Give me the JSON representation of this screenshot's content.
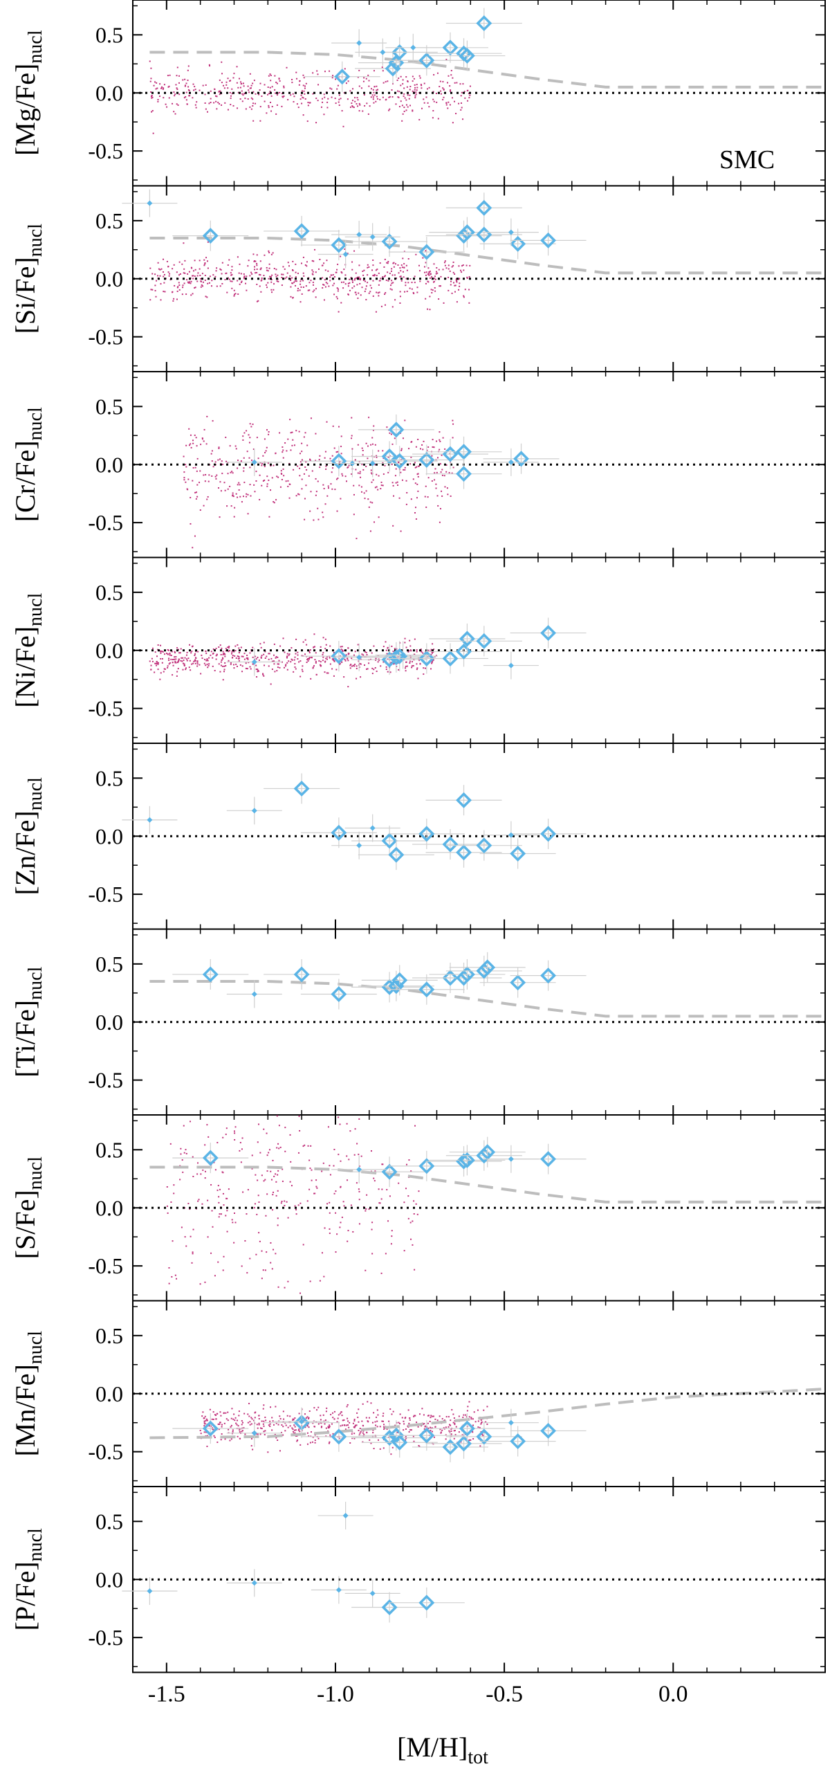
{
  "figure": {
    "xlabel_main": "[M/H]",
    "xlabel_sub": "tot",
    "x_ticks": [
      "-1.5",
      "-1.0",
      "-0.5",
      "0.0"
    ],
    "y_ticks": [
      "0.5",
      "0.0",
      "-0.5"
    ],
    "annotation": "SMC",
    "colors": {
      "model": "#bdbdbd",
      "cluster": "#5ab4e6",
      "field_stars": "#c0307a",
      "errorbar": "#cfcfcf",
      "reference_line": "#000000"
    }
  },
  "chart_data": [
    {
      "type": "scatter",
      "ylabel_main": "[Mg/Fe]",
      "ylabel_sub": "nucl",
      "xlim": [
        -1.6,
        0.45
      ],
      "ylim": [
        -0.8,
        0.8
      ],
      "reference_line_y": 0.0,
      "field_stars": {
        "x_range": [
          -1.55,
          -0.6
        ],
        "y_center": 0.0,
        "y_spread": 0.1,
        "count": 500
      },
      "model_track": {
        "x": [
          -1.55,
          -1.2,
          -1.0,
          -0.8,
          -0.6,
          -0.4,
          -0.2,
          0.0,
          0.45
        ],
        "y": [
          0.35,
          0.35,
          0.33,
          0.28,
          0.2,
          0.12,
          0.05,
          0.05,
          0.05
        ]
      },
      "diamonds": [
        {
          "x": -0.98,
          "y": 0.14
        },
        {
          "x": -0.83,
          "y": 0.21
        },
        {
          "x": -0.82,
          "y": 0.26
        },
        {
          "x": -0.81,
          "y": 0.35
        },
        {
          "x": -0.73,
          "y": 0.28
        },
        {
          "x": -0.66,
          "y": 0.39
        },
        {
          "x": -0.62,
          "y": 0.34
        },
        {
          "x": -0.61,
          "y": 0.32
        },
        {
          "x": -0.56,
          "y": 0.6
        }
      ],
      "small_points": [
        {
          "x": -0.93,
          "y": 0.43
        },
        {
          "x": -0.86,
          "y": 0.35
        },
        {
          "x": -0.77,
          "y": 0.39
        }
      ]
    },
    {
      "type": "scatter",
      "ylabel_main": "[Si/Fe]",
      "ylabel_sub": "nucl",
      "xlim": [
        -1.6,
        0.45
      ],
      "ylim": [
        -0.8,
        0.8
      ],
      "reference_line_y": 0.0,
      "field_stars": {
        "x_range": [
          -1.55,
          -0.6
        ],
        "y_center": 0.0,
        "y_spread": 0.1,
        "count": 600
      },
      "model_track": {
        "x": [
          -1.55,
          -1.2,
          -1.0,
          -0.8,
          -0.6,
          -0.4,
          -0.2,
          0.0,
          0.45
        ],
        "y": [
          0.35,
          0.35,
          0.33,
          0.28,
          0.2,
          0.12,
          0.05,
          0.05,
          0.05
        ]
      },
      "diamonds": [
        {
          "x": -1.37,
          "y": 0.37
        },
        {
          "x": -1.1,
          "y": 0.41
        },
        {
          "x": -0.99,
          "y": 0.29
        },
        {
          "x": -0.84,
          "y": 0.32
        },
        {
          "x": -0.73,
          "y": 0.23
        },
        {
          "x": -0.62,
          "y": 0.37
        },
        {
          "x": -0.61,
          "y": 0.4
        },
        {
          "x": -0.56,
          "y": 0.38
        },
        {
          "x": -0.56,
          "y": 0.61
        },
        {
          "x": -0.46,
          "y": 0.3
        },
        {
          "x": -0.37,
          "y": 0.33
        }
      ],
      "small_points": [
        {
          "x": -1.55,
          "y": 0.65
        },
        {
          "x": -0.93,
          "y": 0.38
        },
        {
          "x": -0.89,
          "y": 0.36
        },
        {
          "x": -0.97,
          "y": 0.21
        },
        {
          "x": -0.48,
          "y": 0.4
        }
      ]
    },
    {
      "type": "scatter",
      "ylabel_main": "[Cr/Fe]",
      "ylabel_sub": "nucl",
      "xlim": [
        -1.6,
        0.45
      ],
      "ylim": [
        -0.8,
        0.8
      ],
      "reference_line_y": 0.0,
      "field_stars": {
        "x_range": [
          -1.45,
          -0.65
        ],
        "y_center": -0.05,
        "y_spread": 0.2,
        "count": 500
      },
      "model_track": null,
      "diamonds": [
        {
          "x": -0.99,
          "y": 0.03
        },
        {
          "x": -0.84,
          "y": 0.07
        },
        {
          "x": -0.82,
          "y": 0.3
        },
        {
          "x": -0.81,
          "y": 0.03
        },
        {
          "x": -0.73,
          "y": 0.04
        },
        {
          "x": -0.66,
          "y": 0.09
        },
        {
          "x": -0.62,
          "y": 0.11
        },
        {
          "x": -0.62,
          "y": -0.08
        },
        {
          "x": -0.45,
          "y": 0.05
        }
      ],
      "small_points": [
        {
          "x": -1.24,
          "y": 0.02
        },
        {
          "x": -0.95,
          "y": 0.01
        },
        {
          "x": -0.89,
          "y": 0.01
        },
        {
          "x": -0.48,
          "y": 0.02
        }
      ]
    },
    {
      "type": "scatter",
      "ylabel_main": "[Ni/Fe]",
      "ylabel_sub": "nucl",
      "xlim": [
        -1.6,
        0.45
      ],
      "ylim": [
        -0.8,
        0.8
      ],
      "reference_line_y": 0.0,
      "field_stars": {
        "x_range": [
          -1.55,
          -0.7
        ],
        "y_center": -0.08,
        "y_spread": 0.07,
        "count": 600
      },
      "model_track": null,
      "diamonds": [
        {
          "x": -0.99,
          "y": -0.05
        },
        {
          "x": -0.84,
          "y": -0.08
        },
        {
          "x": -0.82,
          "y": -0.06
        },
        {
          "x": -0.81,
          "y": -0.05
        },
        {
          "x": -0.73,
          "y": -0.07
        },
        {
          "x": -0.66,
          "y": -0.07
        },
        {
          "x": -0.62,
          "y": -0.01
        },
        {
          "x": -0.61,
          "y": 0.1
        },
        {
          "x": -0.56,
          "y": 0.08
        },
        {
          "x": -0.37,
          "y": 0.15
        }
      ],
      "small_points": [
        {
          "x": -1.24,
          "y": -0.1
        },
        {
          "x": -0.93,
          "y": -0.06
        },
        {
          "x": -0.8,
          "y": -0.04
        },
        {
          "x": -0.48,
          "y": -0.13
        }
      ]
    },
    {
      "type": "scatter",
      "ylabel_main": "[Zn/Fe]",
      "ylabel_sub": "nucl",
      "xlim": [
        -1.6,
        0.45
      ],
      "ylim": [
        -0.8,
        0.8
      ],
      "reference_line_y": 0.0,
      "field_stars": null,
      "model_track": null,
      "diamonds": [
        {
          "x": -1.1,
          "y": 0.41
        },
        {
          "x": -0.99,
          "y": 0.03
        },
        {
          "x": -0.84,
          "y": -0.04
        },
        {
          "x": -0.82,
          "y": -0.16
        },
        {
          "x": -0.73,
          "y": 0.02
        },
        {
          "x": -0.66,
          "y": -0.07
        },
        {
          "x": -0.62,
          "y": 0.31
        },
        {
          "x": -0.62,
          "y": -0.14
        },
        {
          "x": -0.56,
          "y": -0.08
        },
        {
          "x": -0.46,
          "y": -0.15
        },
        {
          "x": -0.37,
          "y": 0.02
        }
      ],
      "small_points": [
        {
          "x": -1.55,
          "y": 0.14
        },
        {
          "x": -1.24,
          "y": 0.22
        },
        {
          "x": -0.93,
          "y": -0.08
        },
        {
          "x": -0.89,
          "y": 0.07
        },
        {
          "x": -0.48,
          "y": 0.01
        }
      ]
    },
    {
      "type": "scatter",
      "ylabel_main": "[Ti/Fe]",
      "ylabel_sub": "nucl",
      "xlim": [
        -1.6,
        0.45
      ],
      "ylim": [
        -0.8,
        0.8
      ],
      "reference_line_y": 0.0,
      "field_stars": null,
      "model_track": {
        "x": [
          -1.55,
          -1.2,
          -1.0,
          -0.8,
          -0.6,
          -0.4,
          -0.2,
          0.0,
          0.45
        ],
        "y": [
          0.35,
          0.35,
          0.33,
          0.28,
          0.2,
          0.12,
          0.05,
          0.05,
          0.05
        ]
      },
      "diamonds": [
        {
          "x": -1.37,
          "y": 0.41
        },
        {
          "x": -1.1,
          "y": 0.41
        },
        {
          "x": -0.99,
          "y": 0.24
        },
        {
          "x": -0.84,
          "y": 0.3
        },
        {
          "x": -0.82,
          "y": 0.31
        },
        {
          "x": -0.81,
          "y": 0.36
        },
        {
          "x": -0.73,
          "y": 0.28
        },
        {
          "x": -0.66,
          "y": 0.38
        },
        {
          "x": -0.62,
          "y": 0.38
        },
        {
          "x": -0.61,
          "y": 0.41
        },
        {
          "x": -0.56,
          "y": 0.44
        },
        {
          "x": -0.55,
          "y": 0.47
        },
        {
          "x": -0.46,
          "y": 0.34
        },
        {
          "x": -0.37,
          "y": 0.4
        }
      ],
      "small_points": [
        {
          "x": -1.24,
          "y": 0.24
        }
      ]
    },
    {
      "type": "scatter",
      "ylabel_main": "[S/Fe]",
      "ylabel_sub": "nucl",
      "xlim": [
        -1.6,
        0.45
      ],
      "ylim": [
        -0.8,
        0.8
      ],
      "reference_line_y": 0.0,
      "field_stars": {
        "x_range": [
          -1.5,
          -0.75
        ],
        "y_center": 0.2,
        "y_spread": 0.45,
        "count": 350
      },
      "model_track": {
        "x": [
          -1.55,
          -1.2,
          -1.0,
          -0.8,
          -0.6,
          -0.4,
          -0.2,
          0.0,
          0.45
        ],
        "y": [
          0.35,
          0.35,
          0.33,
          0.28,
          0.2,
          0.12,
          0.05,
          0.05,
          0.05
        ]
      },
      "diamonds": [
        {
          "x": -1.37,
          "y": 0.43
        },
        {
          "x": -0.84,
          "y": 0.31
        },
        {
          "x": -0.73,
          "y": 0.36
        },
        {
          "x": -0.62,
          "y": 0.4
        },
        {
          "x": -0.61,
          "y": 0.41
        },
        {
          "x": -0.56,
          "y": 0.45
        },
        {
          "x": -0.55,
          "y": 0.48
        },
        {
          "x": -0.37,
          "y": 0.42
        }
      ],
      "small_points": [
        {
          "x": -0.93,
          "y": 0.33
        },
        {
          "x": -0.48,
          "y": 0.42
        }
      ]
    },
    {
      "type": "scatter",
      "ylabel_main": "[Mn/Fe]",
      "ylabel_sub": "nucl",
      "xlim": [
        -1.6,
        0.45
      ],
      "ylim": [
        -0.8,
        0.8
      ],
      "reference_line_y": 0.0,
      "field_stars": {
        "x_range": [
          -1.4,
          -0.55
        ],
        "y_center": -0.28,
        "y_spread": 0.08,
        "count": 600
      },
      "model_track": {
        "x": [
          -1.55,
          -1.2,
          -1.0,
          -0.8,
          -0.6,
          -0.4,
          -0.2,
          0.0,
          0.45
        ],
        "y": [
          -0.38,
          -0.37,
          -0.33,
          -0.28,
          -0.22,
          -0.16,
          -0.09,
          -0.03,
          0.04
        ]
      },
      "diamonds": [
        {
          "x": -1.37,
          "y": -0.3
        },
        {
          "x": -1.1,
          "y": -0.25
        },
        {
          "x": -0.99,
          "y": -0.37
        },
        {
          "x": -0.84,
          "y": -0.38
        },
        {
          "x": -0.82,
          "y": -0.36
        },
        {
          "x": -0.81,
          "y": -0.42
        },
        {
          "x": -0.73,
          "y": -0.36
        },
        {
          "x": -0.66,
          "y": -0.46
        },
        {
          "x": -0.62,
          "y": -0.43
        },
        {
          "x": -0.61,
          "y": -0.3
        },
        {
          "x": -0.56,
          "y": -0.37
        },
        {
          "x": -0.46,
          "y": -0.41
        },
        {
          "x": -0.37,
          "y": -0.32
        }
      ],
      "small_points": [
        {
          "x": -1.24,
          "y": -0.34
        },
        {
          "x": -1.1,
          "y": -0.24
        },
        {
          "x": -0.48,
          "y": -0.25
        }
      ]
    },
    {
      "type": "scatter",
      "ylabel_main": "[P/Fe]",
      "ylabel_sub": "nucl",
      "xlim": [
        -1.6,
        0.45
      ],
      "ylim": [
        -0.8,
        0.8
      ],
      "reference_line_y": 0.0,
      "field_stars": null,
      "model_track": null,
      "diamonds": [
        {
          "x": -0.84,
          "y": -0.24
        },
        {
          "x": -0.73,
          "y": -0.2
        }
      ],
      "small_points": [
        {
          "x": -1.55,
          "y": -0.1
        },
        {
          "x": -1.24,
          "y": -0.03
        },
        {
          "x": -0.99,
          "y": -0.09
        },
        {
          "x": -0.97,
          "y": 0.55
        },
        {
          "x": -0.89,
          "y": -0.12
        }
      ]
    }
  ]
}
